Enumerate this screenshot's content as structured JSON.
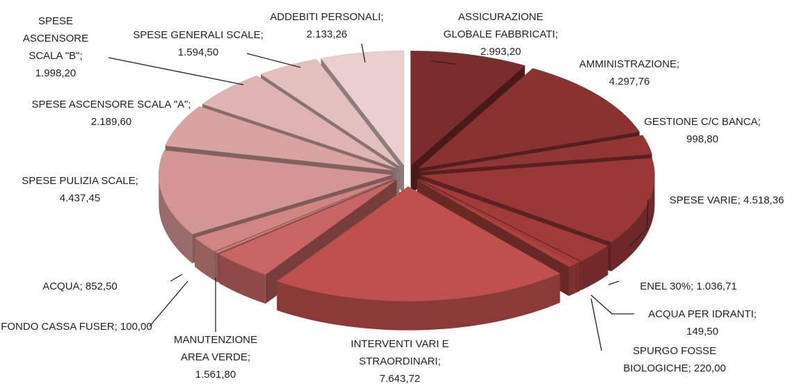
{
  "chart_data": {
    "type": "pie",
    "separator": ";",
    "categories": [
      "ASSICURAZIONE GLOBALE FABBRICATI",
      "AMMINISTRAZIONE",
      "GESTIONE C/C BANCA",
      "SPESE VARIE",
      "ENEL 30%",
      "ACQUA PER IDRANTI",
      "SPURGO FOSSE BIOLOGICHE",
      "INTERVENTI VARI E STRAORDINARI",
      "MANUTENZIONE AREA VERDE",
      "FONDO CASSA FUSER",
      "ACQUA",
      "SPESE PULIZIA SCALE",
      "SPESE ASCENSORE SCALA \"A\"",
      "SPESE ASCENSORE SCALA \"B\"",
      "SPESE GENERALI SCALE",
      "ADDEBITI PERSONALI"
    ],
    "values": [
      2993.2,
      4297.76,
      998.8,
      4518.36,
      1036.71,
      149.5,
      220.0,
      7643.72,
      1561.8,
      100.0,
      852.5,
      4437.45,
      2189.6,
      1998.2,
      1594.5,
      2133.26
    ],
    "value_labels": [
      "2.993,20",
      "4.297,76",
      "998,80",
      "4.518,36",
      "1.036,71",
      "149,50",
      "220,00",
      "7.643,72",
      "1.561,80",
      "100,00",
      "852,50",
      "4.437,45",
      "2.189,60",
      "1.998,20",
      "1.594,50",
      "2.133,26"
    ],
    "colors": [
      "#7b2c2c",
      "#8a3232",
      "#923535",
      "#9a3838",
      "#a03b3a",
      "#a63e3c",
      "#ad423f",
      "#c0504d",
      "#c76664",
      "#cc7a78",
      "#d08583",
      "#d49694",
      "#d9a3a2",
      "#dfb3b2",
      "#e3bfbe",
      "#eacfce"
    ]
  }
}
